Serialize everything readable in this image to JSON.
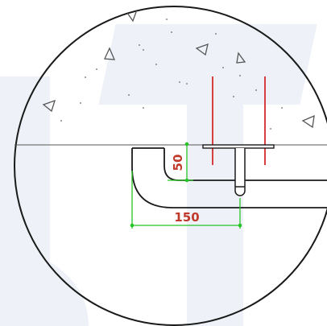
{
  "dimensions": {
    "vertical": {
      "value": "50"
    },
    "horizontal": {
      "value": "150"
    }
  },
  "colors": {
    "background": "#ffffff",
    "watermark": "#eef2f8",
    "outline": "#1a1a1a",
    "dimension": "#27c427",
    "dimension_text": "#c0392b",
    "anchor": "#d42a2a",
    "aggregate": "#555555"
  },
  "icons": {
    "aggregate": "triangle-outline"
  }
}
